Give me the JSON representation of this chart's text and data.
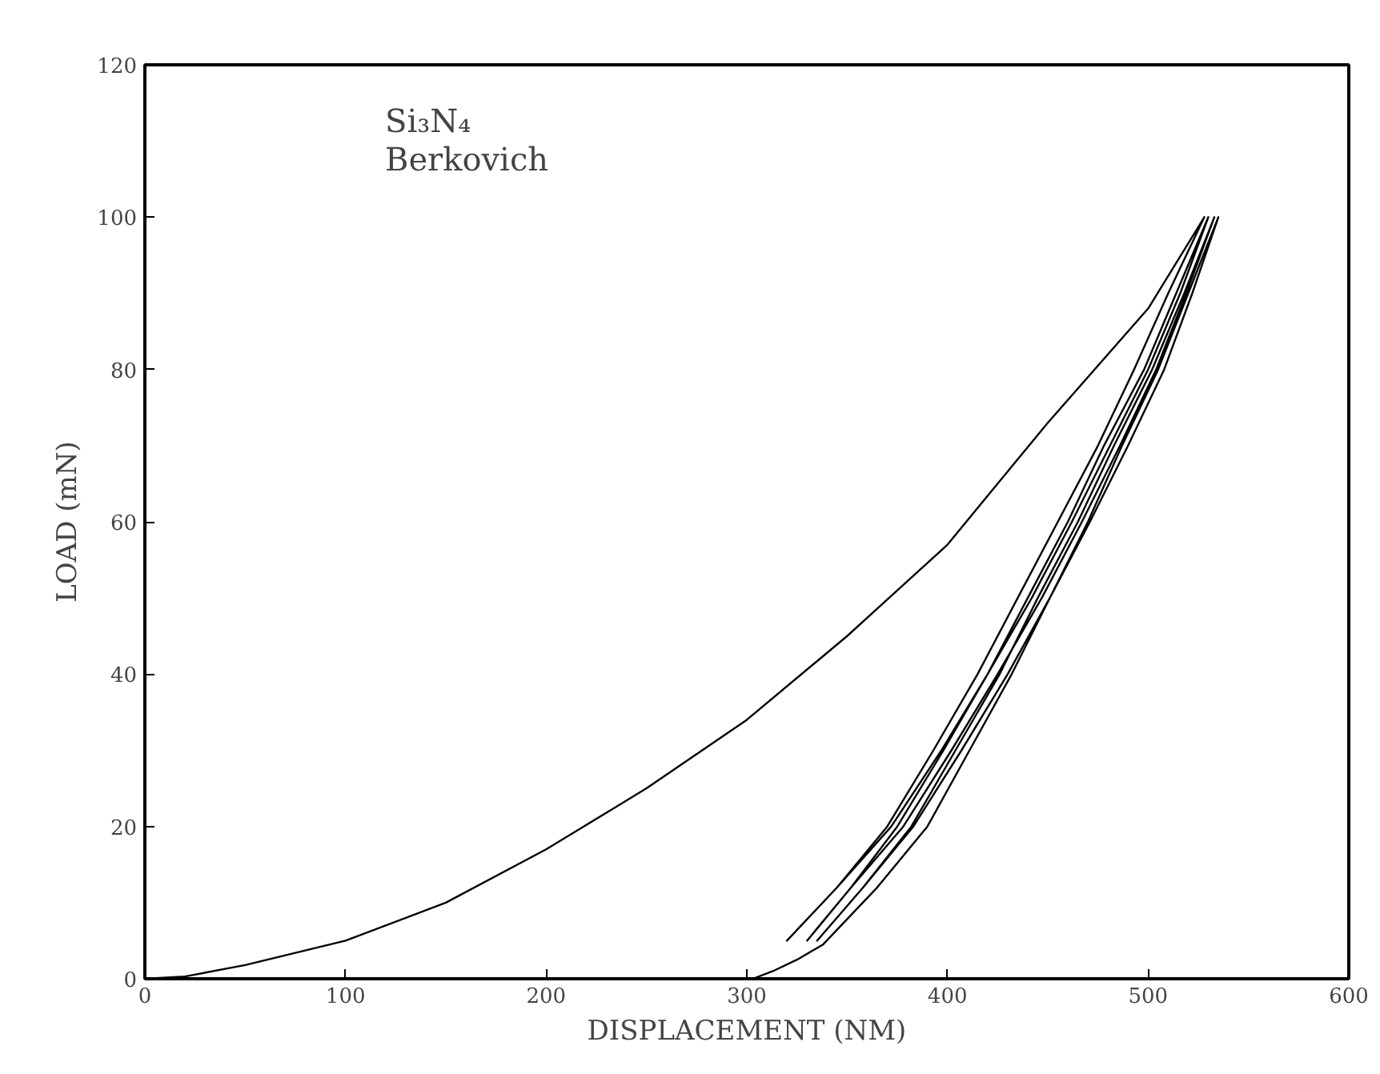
{
  "chart_data": {
    "type": "line",
    "xlabel": "DISPLACEMENT (NM)",
    "ylabel": "LOAD (mN)",
    "annotations": [
      "Si₃N₄\nBerkovich"
    ],
    "series": [
      {
        "color": "#000000",
        "x": [
          0,
          20,
          50,
          100,
          150,
          200,
          250,
          300,
          350,
          400,
          450,
          500,
          528,
          510,
          493,
          475,
          455,
          435,
          415,
          393,
          370,
          345,
          320,
          345,
          372,
          397,
          420,
          442,
          462,
          481,
          500,
          516,
          530,
          514,
          498,
          478,
          460,
          440,
          420,
          398,
          375,
          352,
          330,
          352,
          378,
          402,
          425,
          447,
          467,
          486,
          504,
          519,
          533,
          518,
          502,
          483,
          465,
          445,
          426,
          404,
          382,
          358,
          335,
          358,
          383,
          407,
          430,
          451,
          471,
          490,
          508,
          522,
          535,
          520,
          505,
          487,
          470,
          451,
          432,
          411,
          390,
          365,
          338,
          325,
          313,
          303
        ],
        "values": [
          0,
          0.3,
          1.8,
          5,
          10,
          17,
          25,
          34,
          45,
          57,
          73,
          88,
          100,
          90,
          80,
          70,
          60,
          50,
          40,
          30,
          20,
          12,
          5,
          12,
          20,
          30,
          40,
          50,
          60,
          70,
          80,
          90,
          100,
          90,
          80,
          70,
          60,
          50,
          40,
          30,
          20,
          12,
          5,
          12,
          20,
          30,
          40,
          50,
          60,
          70,
          80,
          90,
          100,
          90,
          80,
          70,
          60,
          50,
          40,
          30,
          20,
          12,
          5,
          12,
          20,
          30,
          40,
          50,
          60,
          70,
          80,
          90,
          100,
          90,
          80,
          70,
          60,
          50,
          40,
          30,
          20,
          12,
          4.5,
          2.5,
          1,
          0
        ]
      }
    ],
    "xlim": [
      0,
      600
    ],
    "ylim": [
      0,
      120
    ],
    "xticks": [
      0,
      100,
      200,
      300,
      400,
      500,
      600
    ],
    "yticks": [
      0,
      20,
      40,
      60,
      80,
      100,
      120
    ],
    "grid": false,
    "line_style": "solid",
    "marker": "none"
  }
}
